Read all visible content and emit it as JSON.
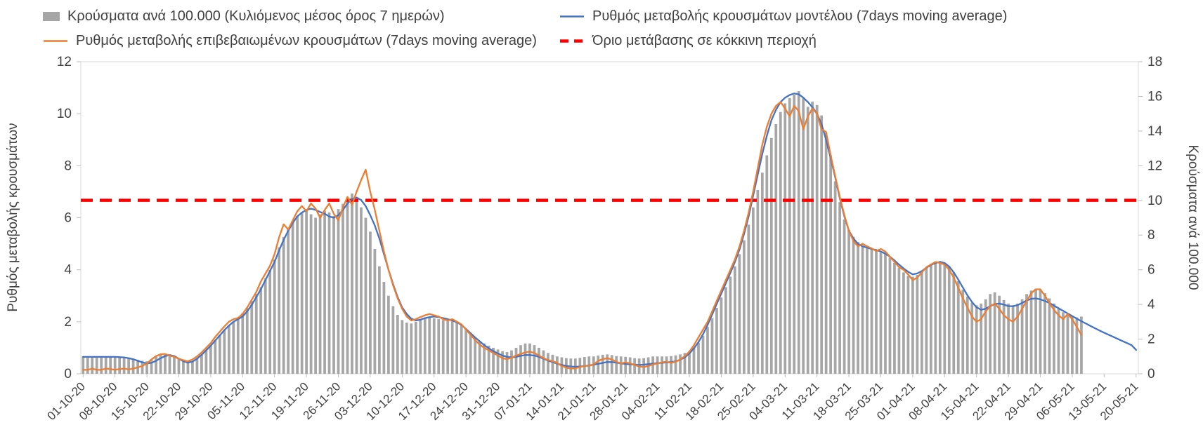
{
  "chart_data": {
    "type": "combo",
    "x": {
      "n_points": 232,
      "tick_every_days": 7,
      "tick_labels": [
        "01-10-20",
        "08-10-20",
        "15-10-20",
        "22-10-20",
        "29-10-20",
        "05-11-20",
        "12-11-20",
        "19-11-20",
        "26-11-20",
        "03-12-20",
        "10-12-20",
        "17-12-20",
        "24-12-20",
        "31-12-20",
        "07-01-21",
        "14-01-21",
        "21-01-21",
        "28-01-21",
        "04-02-21",
        "11-02-21",
        "18-02-21",
        "25-02-21",
        "04-03-21",
        "11-03-21",
        "18-03-21",
        "25-03-21",
        "01-04-21",
        "08-04-21",
        "15-04-21",
        "22-04-21",
        "29-04-21",
        "06-05-21",
        "13-05-21",
        "20-05-21"
      ]
    },
    "left_axis": {
      "label": "Ρυθμός μεταβολής κρουσμάτων",
      "min": 0,
      "max": 12,
      "ticks": [
        0,
        2,
        4,
        6,
        8,
        10,
        12
      ]
    },
    "right_axis": {
      "label": "Κρούσματα ανά 100.000",
      "min": 0,
      "max": 18,
      "ticks": [
        0,
        2,
        4,
        6,
        8,
        10,
        12,
        14,
        16,
        18
      ]
    },
    "threshold": {
      "label": "Όριο μετάβασης σε κόκκινη περιοχή",
      "axis": "left",
      "value": 6.67,
      "right_axis_equivalent": 10,
      "color": "#ff0000"
    },
    "grid": false,
    "legend_position": "top",
    "series": [
      {
        "name": "Κρούσματα ανά 100.000 (Κυλιόμενος μέσος όρος 7 ημερών)",
        "type": "bar",
        "axis": "right",
        "color": "#a6a6a6",
        "values": [
          1.0,
          1.0,
          0.95,
          1.0,
          1.0,
          0.95,
          1.0,
          1.0,
          0.98,
          0.95,
          0.9,
          0.85,
          0.8,
          0.75,
          0.72,
          0.85,
          1.0,
          1.1,
          1.15,
          1.1,
          1.0,
          0.85,
          0.7,
          0.62,
          0.7,
          0.9,
          1.1,
          1.35,
          1.65,
          1.95,
          2.25,
          2.55,
          2.8,
          3.0,
          3.2,
          3.5,
          3.8,
          4.2,
          4.6,
          5.0,
          5.5,
          6.0,
          6.6,
          7.3,
          7.9,
          8.4,
          8.8,
          9.1,
          9.3,
          9.4,
          9.2,
          9.0,
          9.2,
          9.4,
          9.3,
          9.1,
          9.5,
          9.8,
          10.2,
          10.4,
          10.1,
          9.6,
          9.0,
          8.2,
          7.2,
          6.2,
          5.3,
          4.5,
          3.9,
          3.4,
          3.1,
          2.95,
          2.9,
          3.0,
          3.1,
          3.2,
          3.25,
          3.2,
          3.15,
          3.1,
          3.05,
          3.1,
          3.0,
          2.85,
          2.6,
          2.35,
          2.1,
          1.9,
          1.75,
          1.62,
          1.5,
          1.4,
          1.3,
          1.25,
          1.35,
          1.5,
          1.65,
          1.75,
          1.75,
          1.65,
          1.5,
          1.35,
          1.2,
          1.1,
          1.0,
          0.95,
          0.9,
          0.88,
          0.88,
          0.92,
          0.97,
          1.0,
          1.0,
          1.05,
          1.1,
          1.12,
          1.08,
          1.02,
          1.0,
          0.98,
          0.95,
          0.9,
          0.88,
          0.9,
          0.95,
          1.0,
          1.0,
          1.0,
          1.0,
          1.02,
          1.06,
          1.12,
          1.2,
          1.3,
          1.5,
          1.8,
          2.2,
          2.7,
          3.2,
          3.8,
          4.4,
          5.0,
          5.6,
          6.2,
          6.9,
          7.7,
          8.6,
          9.6,
          10.6,
          11.6,
          12.6,
          13.6,
          14.4,
          15.1,
          15.6,
          15.9,
          16.1,
          16.3,
          15.9,
          15.4,
          15.7,
          15.5,
          14.9,
          13.9,
          12.6,
          11.1,
          9.9,
          8.9,
          8.3,
          7.9,
          7.6,
          7.4,
          7.3,
          7.2,
          7.1,
          7.0,
          6.9,
          6.7,
          6.4,
          6.1,
          5.85,
          5.65,
          5.6,
          5.7,
          5.9,
          6.15,
          6.35,
          6.45,
          6.5,
          6.4,
          6.2,
          5.85,
          5.35,
          4.85,
          4.45,
          4.1,
          3.95,
          4.05,
          4.3,
          4.6,
          4.7,
          4.5,
          4.25,
          4.05,
          3.95,
          4.05,
          4.3,
          4.6,
          4.8,
          4.9,
          4.85,
          4.65,
          4.35,
          4.05,
          3.75,
          3.55,
          3.4,
          3.3,
          3.25,
          3.3,
          null,
          null,
          null,
          null,
          null,
          null,
          null,
          null,
          null,
          null,
          null,
          null
        ]
      },
      {
        "name": "Ρυθμός μεταβολής κρουσμάτων μοντέλου (7days moving average)",
        "type": "line",
        "axis": "left",
        "color": "#4472c4",
        "values": [
          0.65,
          0.65,
          0.65,
          0.65,
          0.65,
          0.65,
          0.65,
          0.65,
          0.64,
          0.63,
          0.6,
          0.56,
          0.5,
          0.44,
          0.4,
          0.42,
          0.5,
          0.6,
          0.68,
          0.72,
          0.68,
          0.58,
          0.48,
          0.43,
          0.47,
          0.58,
          0.73,
          0.9,
          1.08,
          1.28,
          1.48,
          1.68,
          1.85,
          2.0,
          2.1,
          2.2,
          2.4,
          2.65,
          2.95,
          3.25,
          3.6,
          3.95,
          4.3,
          4.75,
          5.15,
          5.5,
          5.8,
          6.05,
          6.2,
          6.3,
          6.35,
          6.3,
          6.22,
          6.15,
          6.05,
          6.0,
          6.1,
          6.3,
          6.55,
          6.72,
          6.78,
          6.68,
          6.45,
          6.1,
          5.7,
          5.2,
          4.6,
          4.0,
          3.45,
          2.95,
          2.55,
          2.3,
          2.12,
          2.05,
          2.08,
          2.14,
          2.18,
          2.2,
          2.18,
          2.14,
          2.1,
          2.05,
          1.98,
          1.88,
          1.72,
          1.56,
          1.4,
          1.25,
          1.1,
          0.98,
          0.87,
          0.78,
          0.7,
          0.65,
          0.63,
          0.65,
          0.69,
          0.72,
          0.72,
          0.7,
          0.65,
          0.58,
          0.51,
          0.45,
          0.39,
          0.34,
          0.3,
          0.28,
          0.27,
          0.28,
          0.3,
          0.32,
          0.35,
          0.38,
          0.42,
          0.45,
          0.45,
          0.43,
          0.4,
          0.38,
          0.36,
          0.35,
          0.34,
          0.35,
          0.37,
          0.39,
          0.41,
          0.42,
          0.44,
          0.45,
          0.48,
          0.54,
          0.63,
          0.78,
          0.98,
          1.22,
          1.52,
          1.88,
          2.28,
          2.68,
          3.08,
          3.48,
          3.88,
          4.3,
          4.78,
          5.38,
          6.05,
          6.85,
          7.65,
          8.45,
          9.15,
          9.75,
          10.15,
          10.45,
          10.62,
          10.72,
          10.78,
          10.75,
          10.62,
          10.45,
          10.25,
          10.0,
          9.6,
          9.0,
          8.3,
          7.55,
          6.75,
          6.05,
          5.5,
          5.2,
          5.0,
          4.9,
          4.85,
          4.8,
          4.76,
          4.7,
          4.62,
          4.5,
          4.36,
          4.2,
          4.05,
          3.92,
          3.82,
          3.86,
          3.95,
          4.08,
          4.18,
          4.26,
          4.3,
          4.26,
          4.12,
          3.9,
          3.62,
          3.32,
          3.02,
          2.76,
          2.56,
          2.46,
          2.5,
          2.6,
          2.68,
          2.7,
          2.66,
          2.6,
          2.6,
          2.64,
          2.72,
          2.82,
          2.88,
          2.9,
          2.86,
          2.8,
          2.72,
          2.62,
          2.52,
          2.42,
          2.32,
          2.22,
          2.12,
          2.02,
          1.93,
          1.84,
          1.75,
          1.66,
          1.58,
          1.5,
          1.42,
          1.34,
          1.26,
          1.18,
          1.1,
          0.92
        ]
      },
      {
        "name": "Ρυθμός μεταβολής επιβεβαιωμένων κρουσμάτων (7days moving average)",
        "type": "line",
        "axis": "left",
        "color": "#ed7d31",
        "values": [
          0.15,
          0.15,
          0.2,
          0.15,
          0.15,
          0.2,
          0.18,
          0.15,
          0.18,
          0.2,
          0.17,
          0.2,
          0.25,
          0.3,
          0.4,
          0.55,
          0.68,
          0.75,
          0.76,
          0.7,
          0.65,
          0.58,
          0.52,
          0.48,
          0.55,
          0.67,
          0.82,
          1.0,
          1.18,
          1.42,
          1.62,
          1.82,
          2.0,
          2.1,
          2.15,
          2.3,
          2.55,
          2.85,
          3.15,
          3.55,
          3.85,
          4.15,
          4.6,
          5.25,
          5.75,
          5.55,
          5.9,
          6.25,
          6.45,
          6.25,
          6.55,
          6.35,
          6.0,
          6.3,
          6.55,
          6.15,
          5.9,
          6.4,
          6.8,
          6.5,
          7.0,
          7.45,
          7.85,
          7.0,
          6.3,
          5.5,
          4.7,
          4.0,
          3.4,
          2.9,
          2.5,
          2.2,
          2.05,
          2.1,
          2.18,
          2.25,
          2.3,
          2.25,
          2.2,
          2.1,
          2.05,
          2.1,
          2.0,
          1.9,
          1.7,
          1.5,
          1.3,
          1.12,
          1.0,
          0.9,
          0.8,
          0.7,
          0.6,
          0.56,
          0.62,
          0.7,
          0.76,
          0.82,
          0.85,
          0.8,
          0.7,
          0.6,
          0.53,
          0.48,
          0.42,
          0.3,
          0.24,
          0.2,
          0.21,
          0.26,
          0.3,
          0.31,
          0.36,
          0.5,
          0.56,
          0.6,
          0.55,
          0.46,
          0.4,
          0.44,
          0.4,
          0.34,
          0.28,
          0.26,
          0.3,
          0.36,
          0.4,
          0.44,
          0.46,
          0.42,
          0.46,
          0.55,
          0.68,
          0.85,
          1.1,
          1.4,
          1.7,
          2.0,
          2.4,
          2.8,
          3.2,
          3.6,
          4.0,
          4.4,
          4.9,
          5.5,
          6.2,
          7.0,
          7.9,
          8.8,
          9.5,
          10.0,
          10.3,
          10.45,
          10.2,
          9.9,
          10.3,
          10.1,
          9.4,
          9.9,
          10.2,
          10.0,
          9.4,
          9.3,
          8.4,
          7.6,
          6.8,
          6.1,
          5.5,
          5.1,
          4.9,
          5.0,
          4.9,
          4.82,
          4.72,
          4.8,
          4.7,
          4.5,
          4.3,
          4.1,
          4.0,
          3.82,
          3.6,
          3.7,
          3.9,
          4.1,
          4.2,
          4.3,
          4.26,
          4.2,
          4.0,
          3.7,
          3.3,
          2.9,
          2.55,
          2.2,
          2.0,
          2.1,
          2.4,
          2.6,
          2.7,
          2.5,
          2.25,
          2.1,
          2.0,
          2.2,
          2.5,
          2.8,
          3.1,
          3.25,
          3.25,
          3.0,
          2.72,
          2.45,
          2.25,
          2.1,
          2.3,
          2.1,
          1.8,
          1.5,
          null,
          null,
          null,
          null,
          null,
          null,
          null,
          null,
          null,
          null,
          null,
          null
        ]
      }
    ]
  }
}
